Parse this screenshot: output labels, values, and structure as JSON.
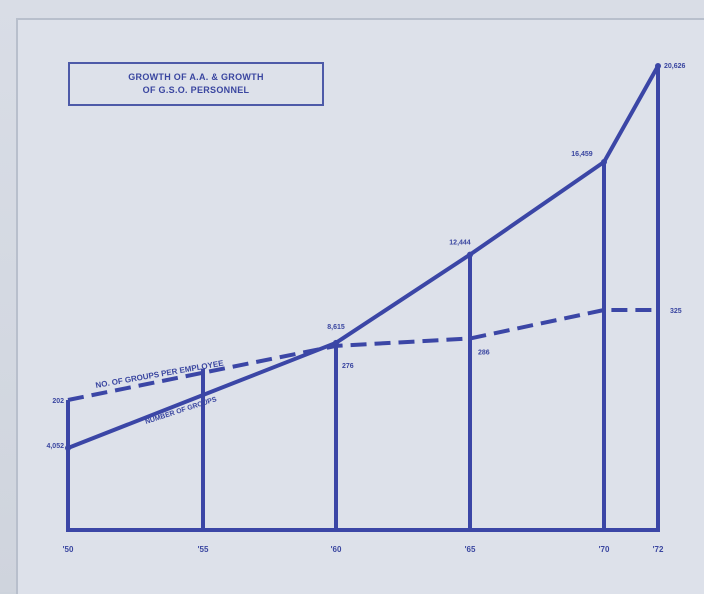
{
  "chart_data": {
    "type": "line",
    "title_lines": [
      "GROWTH OF A.A. & GROWTH",
      "OF G.S.O. PERSONNEL"
    ],
    "x_categories": [
      "'50",
      "'55",
      "'60",
      "'65",
      "'70",
      "'72"
    ],
    "x_values": [
      1950,
      1955,
      1960,
      1965,
      1970,
      1972
    ],
    "series": [
      {
        "name": "NUMBER OF GROUPS",
        "style": "solid",
        "values": [
          4052,
          null,
          8615,
          12444,
          16459,
          20626
        ],
        "labels": [
          "4,052",
          null,
          "8,615",
          "12,444",
          "16,459",
          "20,626"
        ]
      },
      {
        "name": "NO. OF GROUPS PER EMPLOYEE",
        "style": "dashed",
        "values": [
          202,
          null,
          276,
          286,
          325,
          325
        ],
        "labels": [
          "202",
          null,
          "276",
          "286",
          null,
          "325"
        ]
      }
    ],
    "colors": {
      "line": "#3b46a6",
      "text": "#3a46a0",
      "background": "#dde1ea"
    }
  }
}
